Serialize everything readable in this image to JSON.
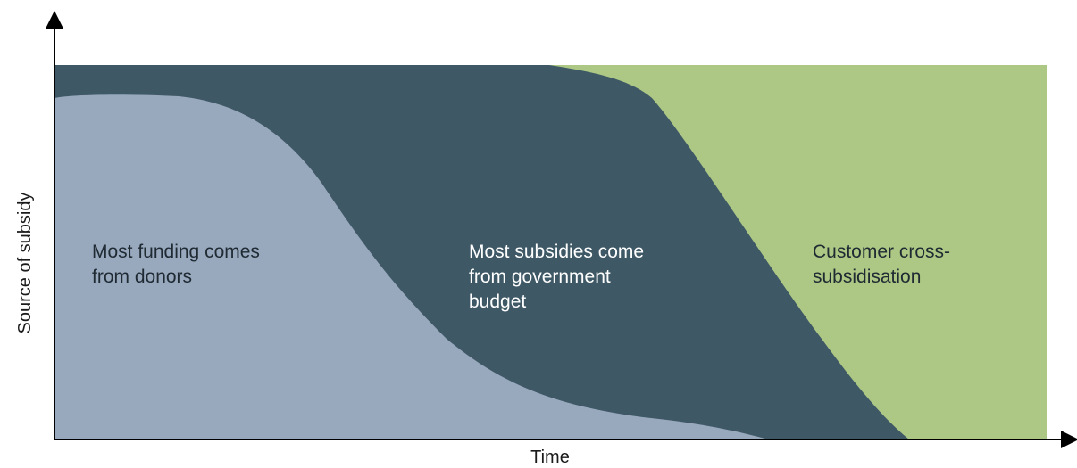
{
  "chart_data": {
    "type": "area",
    "xlabel": "Time",
    "ylabel": "Source of subsidy",
    "stacked": true,
    "normalized": true,
    "grid": false,
    "legend": "none",
    "series": [
      {
        "label_lines": [
          "Most funding comes",
          "from donors"
        ],
        "color": "#98a8bd",
        "label_color": "#1f2a33"
      },
      {
        "label_lines": [
          "Most subsidies come",
          "from government",
          "budget"
        ],
        "color": "#3e5866",
        "label_color": "#ffffff"
      },
      {
        "label_lines": [
          "Customer cross-",
          "subsidisation"
        ],
        "color": "#adc884",
        "label_color": "#1f2a33"
      }
    ],
    "axis_color": "#000000"
  }
}
